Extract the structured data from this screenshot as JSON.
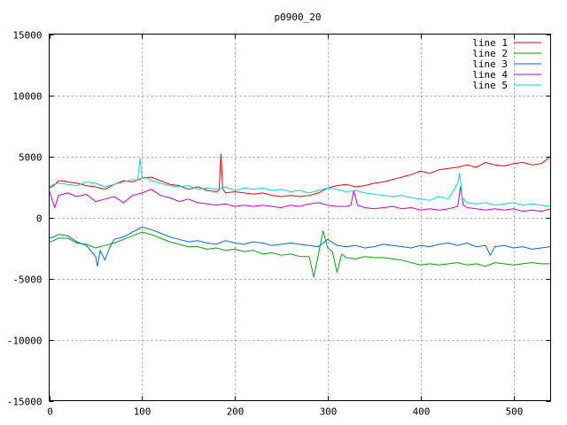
{
  "chart_data": {
    "type": "line",
    "title": "p0900_20",
    "xlabel": "",
    "ylabel": "",
    "xlim": [
      0,
      540
    ],
    "ylim": [
      -15000,
      15000
    ],
    "xticks": [
      0,
      100,
      200,
      300,
      400,
      500
    ],
    "yticks": [
      -15000,
      -10000,
      -5000,
      0,
      5000,
      10000,
      15000
    ],
    "grid": true,
    "legend_position": "top-right",
    "series": [
      {
        "name": "line 1",
        "color": "#ff0000",
        "x": [
          0,
          5,
          10,
          15,
          20,
          30,
          40,
          50,
          60,
          70,
          80,
          90,
          100,
          110,
          120,
          130,
          140,
          150,
          160,
          170,
          180,
          183,
          185,
          187,
          190,
          200,
          210,
          220,
          230,
          240,
          250,
          260,
          270,
          280,
          290,
          300,
          310,
          320,
          330,
          340,
          350,
          360,
          370,
          380,
          390,
          400,
          410,
          420,
          430,
          440,
          450,
          460,
          470,
          480,
          490,
          500,
          510,
          520,
          530,
          535,
          540
        ],
        "y": [
          2400,
          2600,
          3000,
          3000,
          2900,
          2800,
          2600,
          2500,
          2300,
          2700,
          3000,
          2900,
          3200,
          3300,
          3000,
          2700,
          2600,
          2300,
          2500,
          2200,
          2100,
          2200,
          5200,
          2300,
          2000,
          2100,
          2000,
          1900,
          2000,
          1800,
          1700,
          1800,
          1700,
          1800,
          2000,
          2400,
          2600,
          2700,
          2500,
          2600,
          2800,
          2900,
          3100,
          3300,
          3500,
          3800,
          3600,
          3900,
          4000,
          4100,
          4300,
          4100,
          4500,
          4300,
          4200,
          4400,
          4500,
          4300,
          4400,
          4700,
          5000
        ]
      },
      {
        "name": "line 2",
        "color": "#00aa00",
        "x": [
          0,
          5,
          10,
          20,
          30,
          40,
          50,
          60,
          70,
          80,
          90,
          100,
          110,
          120,
          130,
          140,
          150,
          160,
          170,
          180,
          190,
          200,
          210,
          220,
          230,
          240,
          250,
          260,
          270,
          280,
          285,
          290,
          295,
          300,
          305,
          310,
          315,
          320,
          330,
          340,
          350,
          360,
          370,
          380,
          390,
          400,
          410,
          420,
          430,
          440,
          450,
          460,
          470,
          480,
          490,
          500,
          510,
          520,
          530,
          540
        ],
        "y": [
          -2000,
          -1900,
          -1700,
          -1700,
          -2100,
          -2200,
          -2500,
          -2300,
          -2100,
          -1800,
          -1500,
          -1200,
          -1400,
          -1700,
          -2000,
          -2200,
          -2400,
          -2400,
          -2600,
          -2500,
          -2700,
          -2600,
          -2800,
          -2700,
          -3000,
          -2900,
          -3100,
          -3000,
          -3200,
          -3200,
          -4900,
          -3000,
          -1100,
          -2500,
          -2800,
          -4500,
          -3000,
          -3300,
          -3400,
          -3200,
          -3300,
          -3300,
          -3400,
          -3500,
          -3700,
          -3900,
          -3800,
          -3900,
          -3800,
          -3700,
          -3900,
          -3800,
          -4000,
          -3700,
          -3800,
          -3900,
          -3800,
          -3700,
          -3800,
          -3800
        ]
      },
      {
        "name": "line 3",
        "color": "#0066ff",
        "x": [
          0,
          5,
          10,
          20,
          30,
          40,
          50,
          52,
          55,
          60,
          65,
          70,
          80,
          90,
          100,
          110,
          120,
          130,
          140,
          150,
          160,
          170,
          180,
          190,
          200,
          210,
          220,
          230,
          240,
          250,
          260,
          270,
          280,
          290,
          300,
          310,
          320,
          330,
          340,
          350,
          360,
          370,
          380,
          390,
          400,
          410,
          420,
          430,
          440,
          450,
          460,
          470,
          475,
          480,
          490,
          500,
          510,
          520,
          530,
          540
        ],
        "y": [
          -1700,
          -1600,
          -1400,
          -1500,
          -2000,
          -2300,
          -3200,
          -4000,
          -2700,
          -3500,
          -2500,
          -1800,
          -1600,
          -1200,
          -800,
          -1000,
          -1300,
          -1600,
          -1800,
          -2000,
          -1900,
          -2100,
          -2200,
          -1900,
          -2100,
          -2200,
          -2000,
          -2100,
          -2300,
          -2200,
          -2100,
          -2200,
          -2300,
          -2400,
          -1800,
          -2300,
          -2400,
          -2300,
          -2500,
          -2400,
          -2200,
          -2300,
          -2400,
          -2500,
          -2300,
          -2400,
          -2200,
          -2100,
          -2300,
          -2100,
          -2400,
          -2300,
          -3100,
          -2400,
          -2300,
          -2500,
          -2400,
          -2600,
          -2500,
          -2400
        ]
      },
      {
        "name": "line 4",
        "color": "#cc00cc",
        "x": [
          0,
          3,
          6,
          10,
          20,
          30,
          40,
          50,
          60,
          70,
          80,
          90,
          100,
          110,
          120,
          130,
          140,
          150,
          160,
          170,
          180,
          190,
          200,
          210,
          220,
          230,
          240,
          250,
          260,
          270,
          280,
          290,
          300,
          310,
          320,
          325,
          328,
          332,
          340,
          350,
          360,
          370,
          380,
          390,
          400,
          410,
          420,
          430,
          440,
          443,
          446,
          450,
          460,
          470,
          480,
          490,
          500,
          510,
          520,
          530,
          540
        ],
        "y": [
          2200,
          1500,
          800,
          1800,
          2000,
          1700,
          1900,
          1300,
          1500,
          1700,
          1200,
          1800,
          2000,
          2300,
          1800,
          1600,
          1300,
          1500,
          1200,
          1100,
          1000,
          1100,
          900,
          1000,
          900,
          1000,
          900,
          800,
          1000,
          900,
          1100,
          1200,
          1000,
          900,
          900,
          1000,
          2200,
          1000,
          800,
          700,
          800,
          900,
          700,
          800,
          600,
          700,
          600,
          700,
          900,
          2500,
          1000,
          800,
          700,
          600,
          700,
          600,
          700,
          500,
          600,
          500,
          700
        ]
      },
      {
        "name": "line 5",
        "color": "#00dddd",
        "x": [
          0,
          5,
          10,
          20,
          30,
          40,
          50,
          60,
          70,
          80,
          90,
          95,
          98,
          100,
          103,
          110,
          120,
          130,
          140,
          150,
          160,
          170,
          180,
          190,
          200,
          210,
          220,
          230,
          240,
          250,
          260,
          270,
          280,
          290,
          300,
          310,
          320,
          330,
          340,
          350,
          360,
          370,
          380,
          390,
          400,
          410,
          420,
          430,
          440,
          442,
          445,
          450,
          460,
          470,
          480,
          490,
          500,
          510,
          520,
          530,
          540
        ],
        "y": [
          2500,
          2700,
          2800,
          2700,
          2600,
          2900,
          2800,
          2500,
          2700,
          2900,
          3100,
          3000,
          4800,
          3200,
          3300,
          3000,
          2800,
          2600,
          2500,
          2600,
          2300,
          2400,
          2300,
          2500,
          2200,
          2400,
          2300,
          2400,
          2200,
          2300,
          2100,
          2200,
          2000,
          2200,
          2400,
          2300,
          2100,
          2200,
          2000,
          1900,
          1800,
          1700,
          1800,
          1600,
          1500,
          1400,
          1700,
          1500,
          2800,
          3600,
          1600,
          1200,
          1100,
          1200,
          1000,
          1100,
          1200,
          1000,
          1100,
          1000,
          900
        ]
      }
    ]
  }
}
